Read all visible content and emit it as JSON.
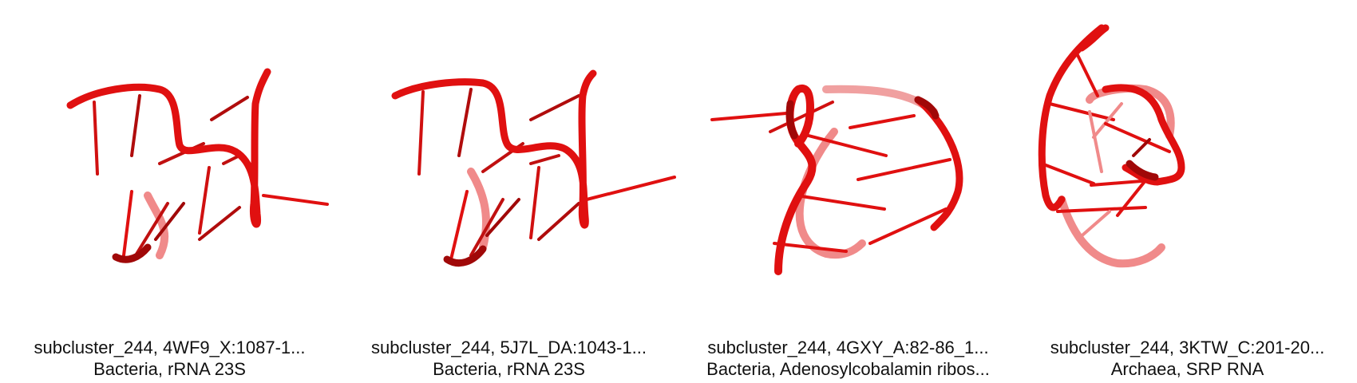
{
  "theme": {
    "strand_color": "#e01010",
    "shadow_color": "#a00808",
    "faded_color": "#f08a8a"
  },
  "panels": [
    {
      "id": "4WF9",
      "line1": "subcluster_244, 4WF9_X:1087-1...",
      "line2": "Bacteria, rRNA 23S"
    },
    {
      "id": "5J7L",
      "line1": "subcluster_244, 5J7L_DA:1043-1...",
      "line2": "Bacteria, rRNA 23S"
    },
    {
      "id": "4GXY",
      "line1": "subcluster_244, 4GXY_A:82-86_1...",
      "line2": "Bacteria, Adenosylcobalamin ribos..."
    },
    {
      "id": "3KTW",
      "line1": "subcluster_244, 3KTW_C:201-20...",
      "line2": "Archaea, SRP RNA"
    }
  ]
}
